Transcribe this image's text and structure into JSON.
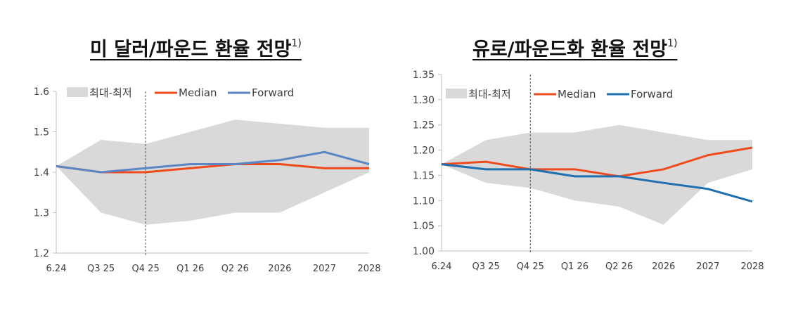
{
  "colors": {
    "band": "#d9d9d9",
    "median": "#ee4a1c",
    "forward_left": "#5b86c6",
    "forward_right": "#1f6fb0",
    "axis": "#bfbfbf",
    "divider": "#595959",
    "text": "#404040"
  },
  "chart_data": [
    {
      "type": "line",
      "title": "미 달러/파운드 환율 전망",
      "title_sup": "1)",
      "categories": [
        "6.24",
        "Q3 25",
        "Q4 25",
        "Q1 26",
        "Q2 26",
        "2026",
        "2027",
        "2028"
      ],
      "ylim": [
        1.2,
        1.6
      ],
      "yticks": [
        "1.2",
        "1.3",
        "1.4",
        "1.5",
        "1.6"
      ],
      "divider_after_index": 2,
      "legend": [
        "최대-최저",
        "Median",
        "Forward"
      ],
      "series": [
        {
          "name": "Median",
          "values": [
            1.415,
            1.4,
            1.4,
            1.41,
            1.42,
            1.42,
            1.41,
            1.41
          ]
        },
        {
          "name": "Forward",
          "values": [
            1.415,
            1.4,
            1.41,
            1.42,
            1.42,
            1.43,
            1.45,
            1.42
          ]
        }
      ],
      "range": {
        "name": "최대-최저",
        "max": [
          1.415,
          1.48,
          1.47,
          1.5,
          1.53,
          1.52,
          1.51,
          1.51
        ],
        "min": [
          1.415,
          1.3,
          1.27,
          1.28,
          1.3,
          1.3,
          1.35,
          1.4
        ]
      }
    },
    {
      "type": "line",
      "title": "유로/파운드화 환율 전망",
      "title_sup": "1)",
      "categories": [
        "6.24",
        "Q3 25",
        "Q4 25",
        "Q1 26",
        "Q2 26",
        "2026",
        "2027",
        "2028"
      ],
      "ylim": [
        1.0,
        1.35
      ],
      "yticks": [
        "1.00",
        "1.05",
        "1.10",
        "1.15",
        "1.20",
        "1.25",
        "1.30",
        "1.35"
      ],
      "divider_after_index": 2,
      "legend": [
        "최대-최저",
        "Median",
        "Forward"
      ],
      "series": [
        {
          "name": "Median",
          "values": [
            1.172,
            1.177,
            1.162,
            1.162,
            1.148,
            1.162,
            1.19,
            1.205
          ]
        },
        {
          "name": "Forward",
          "values": [
            1.172,
            1.162,
            1.162,
            1.148,
            1.148,
            1.135,
            1.123,
            1.098
          ]
        }
      ],
      "range": {
        "name": "최대-최저",
        "max": [
          1.172,
          1.22,
          1.235,
          1.235,
          1.25,
          1.235,
          1.22,
          1.22
        ],
        "min": [
          1.172,
          1.135,
          1.125,
          1.1,
          1.088,
          1.052,
          1.135,
          1.162
        ]
      }
    }
  ]
}
